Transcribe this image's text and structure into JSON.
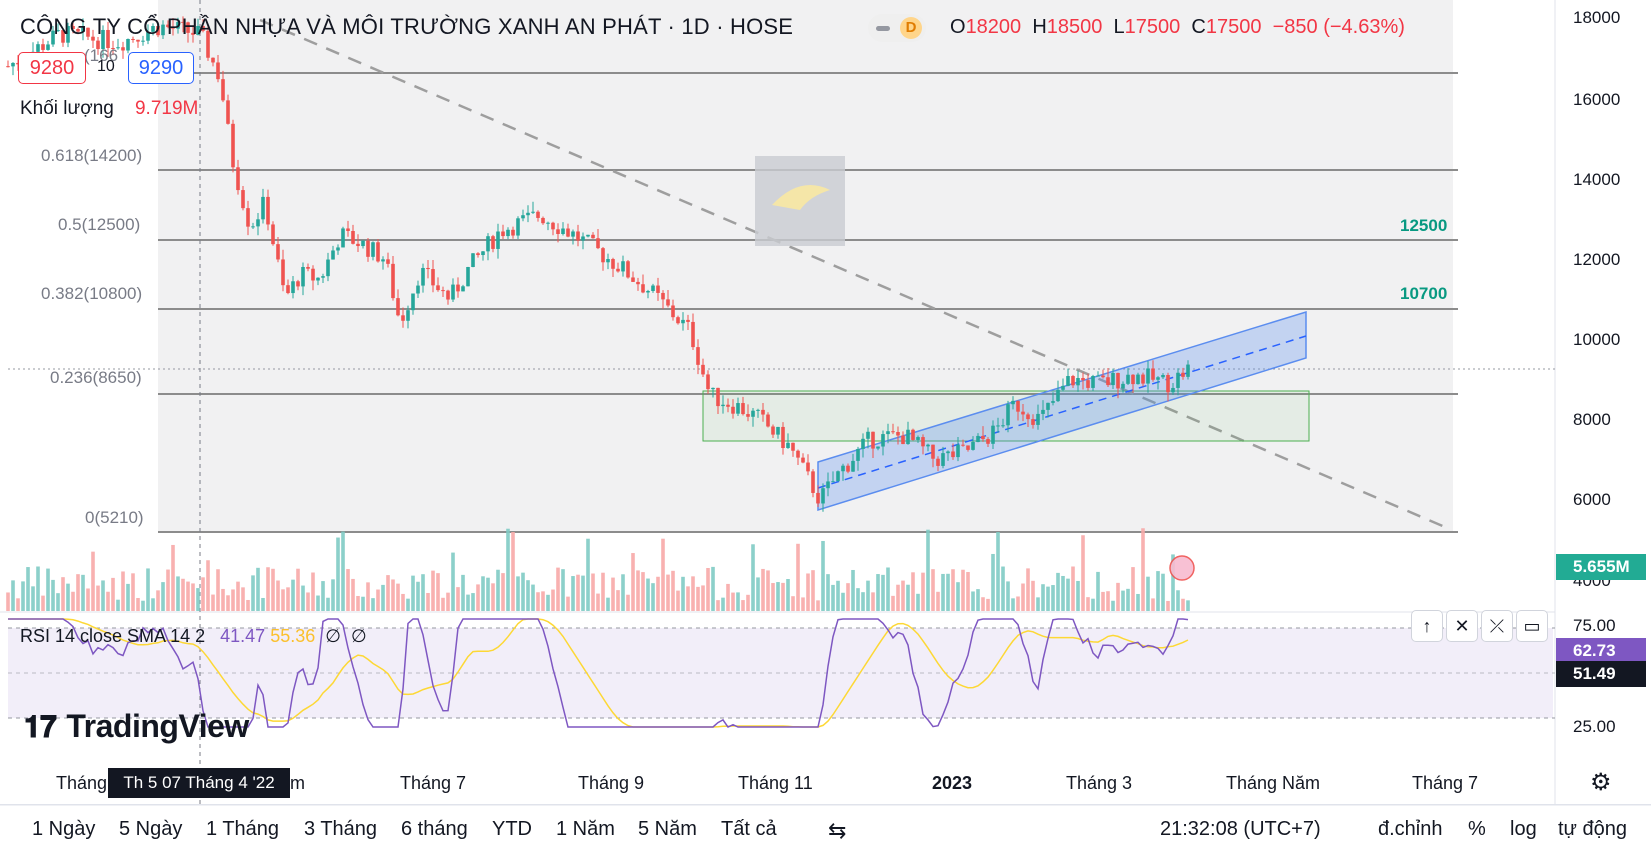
{
  "header": {
    "title": "CÔNG TY CỔ PHẦN NHỰA VÀ MÔI TRƯỜNG XANH AN PHÁT · 1D · HOSE",
    "interval_badge": "D",
    "ohlc": {
      "o_label": "O",
      "o_value": "18200",
      "h_label": "H",
      "h_value": "18500",
      "l_label": "L",
      "l_value": "17500",
      "c_label": "C",
      "c_value": "17500",
      "change": "−850 (−4.63%)"
    },
    "sell_price": "9280",
    "spread": "10",
    "buy_price": "9290",
    "partial_hidden_label": "(166",
    "volume_label": "Khối lượng",
    "volume_value": "9.719M"
  },
  "fib_levels": [
    {
      "label": "0.618(14200)",
      "value": 14200
    },
    {
      "label": "0.5(12500)",
      "value": 12500
    },
    {
      "label": "0.382(10800)",
      "value": 10800
    },
    {
      "label": "0.236(8650)",
      "value": 8650
    },
    {
      "label": "0(5210)",
      "value": 5210
    }
  ],
  "resistance_labels": [
    {
      "label": "12500",
      "value": 12500
    },
    {
      "label": "10700",
      "value": 10700
    }
  ],
  "price_axis": {
    "ticks": [
      "18000",
      "16000",
      "14000",
      "12000",
      "10000",
      "8000",
      "6000",
      "4000"
    ],
    "volume_badge": "5.655M"
  },
  "rsi": {
    "label": "RSI 14 close SMA 14 2",
    "value1": "41.47",
    "value2": "55.36",
    "value3": "∅",
    "value4": "∅",
    "axis_top": "75.00",
    "axis_bottom": "25.00",
    "badge_rsi": "62.73",
    "badge_sma": "51.49"
  },
  "time_axis": {
    "labels": [
      "Tháng",
      "Th 5 07 Tháng 4 '22",
      "m",
      "Tháng 7",
      "Tháng 9",
      "Tháng 11",
      "2023",
      "Tháng 3",
      "Tháng Năm",
      "Tháng 7"
    ]
  },
  "watermark_logo": "TradingView",
  "bottom_bar": {
    "ranges": [
      "1 Ngày",
      "5 Ngày",
      "1 Tháng",
      "3 Tháng",
      "6 tháng",
      "YTD",
      "1 Năm",
      "5 Năm",
      "Tất cả"
    ],
    "time": "21:32:08 (UTC+7)",
    "adjust": "đ.chỉnh",
    "percent": "%",
    "log": "log",
    "auto": "tự động"
  },
  "colors": {
    "up": "#26a69a",
    "down": "#ef5350",
    "badge_teal": "#22ab94",
    "rsi_line": "#7e57c2",
    "rsi_sma": "#fdd835",
    "channel": "#5b8def",
    "zone": "#4caf50"
  },
  "icons": {
    "compare": "compare-range-icon",
    "settings": "gear-icon",
    "up": "arrow-up-icon",
    "close": "close-icon",
    "collapse": "collapse-icon",
    "maximize": "maximize-icon"
  }
}
